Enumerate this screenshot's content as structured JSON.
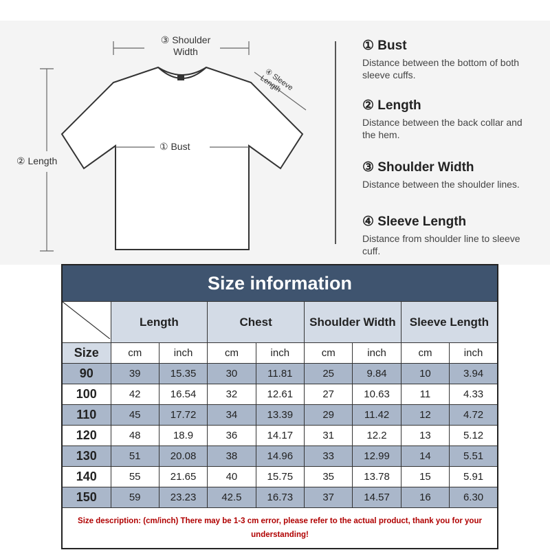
{
  "diagram": {
    "labels": {
      "shoulder": "③ Shoulder Width",
      "bust": "① Bust",
      "length": "② Length",
      "sleeve": "④ Sleeve Length"
    },
    "legend": [
      {
        "title": "① Bust",
        "desc": "Distance between the bottom of both sleeve cuffs."
      },
      {
        "title": "② Length",
        "desc": "Distance between the back collar and the hem."
      },
      {
        "title": "③ Shoulder Width",
        "desc": "Distance between the shoulder lines."
      },
      {
        "title": "④ Sleeve Length",
        "desc": "Distance from shoulder line to sleeve cuff."
      }
    ]
  },
  "table": {
    "title": "Size information",
    "columns": [
      "Length",
      "Chest",
      "Shoulder Width",
      "Sleeve Length"
    ],
    "size_label": "Size",
    "units": [
      "cm",
      "inch",
      "cm",
      "inch",
      "cm",
      "inch",
      "cm",
      "inch"
    ],
    "rows": [
      [
        "90",
        "39",
        "15.35",
        "30",
        "11.81",
        "25",
        "9.84",
        "10",
        "3.94"
      ],
      [
        "100",
        "42",
        "16.54",
        "32",
        "12.61",
        "27",
        "10.63",
        "11",
        "4.33"
      ],
      [
        "110",
        "45",
        "17.72",
        "34",
        "13.39",
        "29",
        "11.42",
        "12",
        "4.72"
      ],
      [
        "120",
        "48",
        "18.9",
        "36",
        "14.17",
        "31",
        "12.2",
        "13",
        "5.12"
      ],
      [
        "130",
        "51",
        "20.08",
        "38",
        "14.96",
        "33",
        "12.99",
        "14",
        "5.51"
      ],
      [
        "140",
        "55",
        "21.65",
        "40",
        "15.75",
        "35",
        "13.78",
        "15",
        "5.91"
      ],
      [
        "150",
        "59",
        "23.23",
        "42.5",
        "16.73",
        "37",
        "14.57",
        "16",
        "6.30"
      ]
    ],
    "note": "Size description: (cm/inch) There may be 1-3 cm error, please refer to the actual product, thank you for your understanding!"
  },
  "colors": {
    "title_bg": "#3f546f",
    "header_bg": "#d3dbe6",
    "alt_row": "#aab7ca",
    "note": "#b00000"
  }
}
